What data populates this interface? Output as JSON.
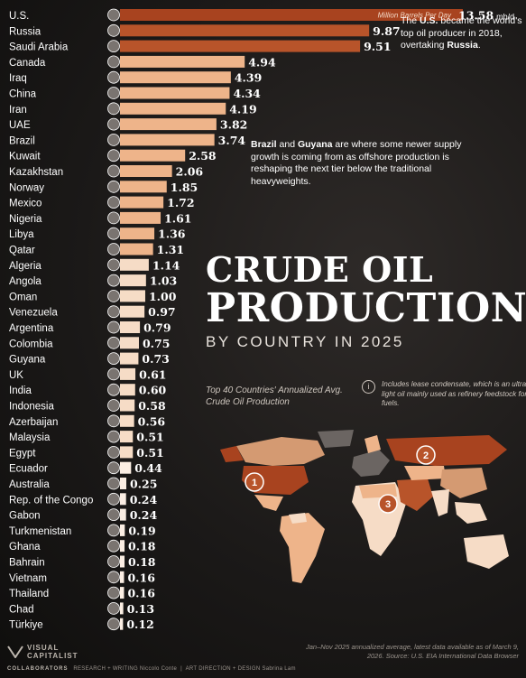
{
  "chart_data": {
    "type": "bar",
    "orientation": "horizontal",
    "unit_label": "Million Barrels Per Day",
    "first_value_suffix": "mb/d",
    "categories": [
      "U.S.",
      "Russia",
      "Saudi Arabia",
      "Canada",
      "Iraq",
      "China",
      "Iran",
      "UAE",
      "Brazil",
      "Kuwait",
      "Kazakhstan",
      "Norway",
      "Mexico",
      "Nigeria",
      "Libya",
      "Qatar",
      "Algeria",
      "Angola",
      "Oman",
      "Venezuela",
      "Argentina",
      "Colombia",
      "Guyana",
      "UK",
      "India",
      "Indonesia",
      "Azerbaijan",
      "Malaysia",
      "Egypt",
      "Ecuador",
      "Australia",
      "Rep. of the Congo",
      "Gabon",
      "Turkmenistan",
      "Ghana",
      "Bahrain",
      "Vietnam",
      "Thailand",
      "Chad",
      "Türkiye"
    ],
    "values": [
      13.58,
      9.87,
      9.51,
      4.94,
      4.39,
      4.34,
      4.19,
      3.82,
      3.74,
      2.58,
      2.06,
      1.85,
      1.72,
      1.61,
      1.36,
      1.31,
      1.14,
      1.03,
      1.0,
      0.97,
      0.79,
      0.75,
      0.73,
      0.61,
      0.6,
      0.58,
      0.56,
      0.51,
      0.51,
      0.44,
      0.25,
      0.24,
      0.24,
      0.19,
      0.18,
      0.18,
      0.16,
      0.16,
      0.13,
      0.12
    ],
    "value_labels": [
      "13.58",
      "9.87",
      "9.51",
      "4.94",
      "4.39",
      "4.34",
      "4.19",
      "3.82",
      "3.74",
      "2.58",
      "2.06",
      "1.85",
      "1.72",
      "1.61",
      "1.36",
      "1.31",
      "1.14",
      "1.03",
      "1.00",
      "0.97",
      "0.79",
      "0.75",
      "0.73",
      "0.61",
      "0.60",
      "0.58",
      "0.56",
      "0.51",
      "0.51",
      "0.44",
      "0.25",
      "0.24",
      "0.24",
      "0.19",
      "0.18",
      "0.18",
      "0.16",
      "0.16",
      "0.13",
      "0.12"
    ],
    "colors": {
      "top": "#a8431f",
      "second": "#b8542a",
      "mid": "#eeb48a",
      "low": "#f6dcc6",
      "lowest": "#fbeee3"
    },
    "xlim": [
      0,
      13.58
    ]
  },
  "title": {
    "line1": "CRUDE OIL",
    "line2": "PRODUCTION",
    "subtitle": "BY COUNTRY IN 2025"
  },
  "caption": "Top 40 Countries' Annualized Avg. Crude Oil Production",
  "note": "Includes lease condensate, which is an ultra-light oil mainly used as refinery feedstock for fuels.",
  "annotations": {
    "us": {
      "pre": "The ",
      "bold1": "U.S.",
      "mid": " became the world's top oil producer in 2018, overtaking ",
      "bold2": "Russia",
      "post": "."
    },
    "brazil": {
      "bold1": "Brazil",
      "mid1": " and ",
      "bold2": "Guyana",
      "post": " are where some newer supply growth is coming from as offshore production is reshaping the next tier below the traditional heavyweights."
    }
  },
  "map_markers": [
    "1",
    "2",
    "3"
  ],
  "footer": {
    "logo_line1": "VISUAL",
    "logo_line2": "CAPITALIST",
    "collaborators": "COLLABORATORS",
    "research_label": "RESEARCH + WRITING",
    "research_name": "Niccolo Conte",
    "art_label": "ART DIRECTION + DESIGN",
    "art_name": "Sabrina Lam",
    "source": "Jan–Nov 2025 annualized average, latest data available as of March 9, 2026. Source: U.S. EIA International Data Browser"
  }
}
